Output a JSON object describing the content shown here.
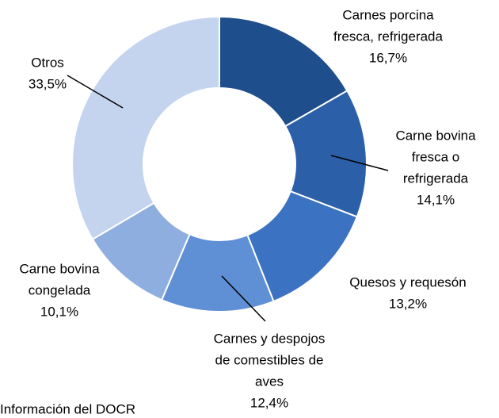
{
  "chart_data": {
    "type": "donut",
    "categories": [
      [
        "Carnes porcina",
        "fresca, refrigerada"
      ],
      [
        "Carne bovina",
        "fresca o",
        "refrigerada"
      ],
      [
        "Quesos y requesón"
      ],
      [
        "Carnes y despojos",
        "de comestibles de",
        "aves"
      ],
      [
        "Carne bovina",
        "congelada"
      ],
      [
        "Otros"
      ]
    ],
    "values": [
      16.7,
      14.1,
      13.2,
      12.4,
      10.1,
      33.5
    ],
    "value_labels": [
      "16,7%",
      "14,1%",
      "13,2%",
      "12,4%",
      "10,1%",
      "33,5%"
    ],
    "colors": [
      "#1f4e8c",
      "#2b5fa8",
      "#3b72c2",
      "#5f8fd4",
      "#8eaedf",
      "#c4d4ee"
    ],
    "source": "Información del DOCR"
  }
}
